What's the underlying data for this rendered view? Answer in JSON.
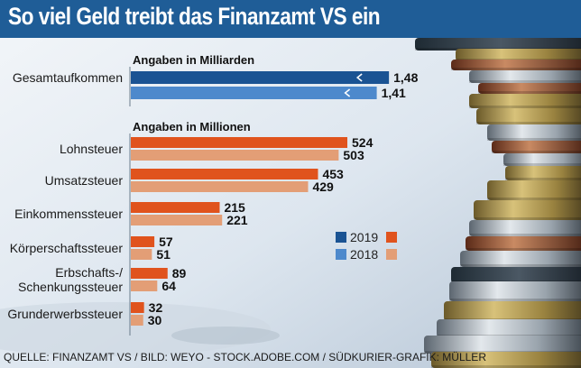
{
  "header": {
    "title": "So viel Geld treibt das Finanzamt VS ein"
  },
  "colors": {
    "title_bg": "#1f5d97",
    "billion_2019": "#1a5393",
    "billion_2018": "#4d89cc",
    "million_2019": "#e0531d",
    "million_2018": "#e39e76"
  },
  "chart_data": [
    {
      "type": "bar",
      "subtitle": "Angaben in Milliarden",
      "categories": [
        "Gesamtaufkommen"
      ],
      "series": [
        {
          "name": "2019",
          "values": [
            1.48
          ],
          "labels": [
            "1,48"
          ]
        },
        {
          "name": "2018",
          "values": [
            1.41
          ],
          "labels": [
            "1,41"
          ]
        }
      ]
    },
    {
      "type": "bar",
      "subtitle": "Angaben in Millionen",
      "categories": [
        "Lohnsteuer",
        "Umsatzsteuer",
        "Einkommenssteuer",
        "Körperschaftssteuer",
        "Erbschafts-/ Schenkungssteuer",
        "Grunderwerbssteuer"
      ],
      "series": [
        {
          "name": "2019",
          "values": [
            524,
            453,
            215,
            57,
            89,
            32
          ]
        },
        {
          "name": "2018",
          "values": [
            503,
            429,
            221,
            51,
            64,
            30
          ]
        }
      ]
    }
  ],
  "category_lines": [
    [
      "Lohnsteuer"
    ],
    [
      "Umsatzsteuer"
    ],
    [
      "Einkommenssteuer"
    ],
    [
      "Körperschaftssteuer"
    ],
    [
      "Erbschafts-/",
      "Schenkungssteuer"
    ],
    [
      "Grunderwerbssteuer"
    ]
  ],
  "legend": {
    "entries": [
      "2019",
      "2018"
    ]
  },
  "footer": {
    "source": "QUELLE: FINANZAMT VS / BILD: WEYO - STOCK.ADOBE.COM / SÜDKURIER-GRAFIK: MÜLLER"
  }
}
